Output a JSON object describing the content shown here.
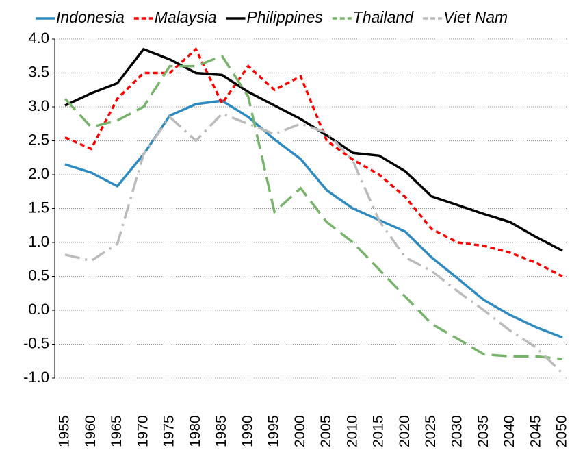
{
  "chart_data": {
    "type": "line",
    "categories": [
      "1955",
      "1960",
      "1965",
      "1970",
      "1975",
      "1980",
      "1985",
      "1990",
      "1995",
      "2000",
      "2005",
      "2010",
      "2015",
      "2020",
      "2025",
      "2030",
      "2035",
      "2040",
      "2045",
      "2050"
    ],
    "series": [
      {
        "name": "Indonesia",
        "color": "#2e8bc0",
        "style": "solid",
        "values": [
          2.15,
          2.03,
          1.83,
          2.3,
          2.87,
          3.04,
          3.09,
          2.85,
          2.52,
          2.23,
          1.77,
          1.5,
          1.33,
          1.16,
          0.78,
          0.47,
          0.15,
          -0.07,
          -0.25,
          -0.4
        ]
      },
      {
        "name": "Malaysia",
        "color": "#ff0000",
        "style": "dashed",
        "values": [
          2.55,
          2.38,
          3.12,
          3.5,
          3.5,
          3.85,
          3.05,
          3.6,
          3.25,
          3.45,
          2.5,
          2.22,
          2.0,
          1.67,
          1.2,
          1.0,
          0.95,
          0.85,
          0.7,
          0.5
        ]
      },
      {
        "name": "Philippines",
        "color": "#000000",
        "style": "solid",
        "values": [
          3.02,
          3.2,
          3.35,
          3.85,
          3.7,
          3.5,
          3.47,
          3.22,
          3.02,
          2.82,
          2.58,
          2.32,
          2.28,
          2.05,
          1.68,
          1.55,
          1.42,
          1.3,
          1.08,
          0.88
        ]
      },
      {
        "name": "Thailand",
        "color": "#77b36a",
        "style": "long-dashed",
        "values": [
          3.12,
          2.7,
          2.8,
          3.0,
          3.6,
          3.6,
          3.75,
          3.15,
          1.45,
          1.8,
          1.3,
          1.0,
          0.6,
          0.2,
          -0.2,
          -0.42,
          -0.65,
          -0.68,
          -0.68,
          -0.72
        ]
      },
      {
        "name": "Viet Nam",
        "color": "#bbbbbb",
        "style": "dash-dot",
        "values": [
          0.82,
          0.73,
          0.98,
          2.3,
          2.85,
          2.5,
          2.9,
          2.75,
          2.6,
          2.75,
          2.62,
          2.2,
          1.32,
          0.78,
          0.58,
          0.28,
          0.0,
          -0.3,
          -0.55,
          -0.93
        ]
      }
    ],
    "ylim": [
      -1,
      4
    ],
    "yticks": [
      {
        "value": -1,
        "label": "-1.0"
      },
      -0.5,
      {
        "value": 0,
        "label": "0.0"
      },
      0.5,
      {
        "value": 1,
        "label": "1.0"
      },
      1.5,
      {
        "value": 2,
        "label": "2.0"
      },
      2.5,
      {
        "value": 3,
        "label": "3.0"
      },
      3.5,
      {
        "value": 4,
        "label": "4.0"
      }
    ],
    "grid": true
  }
}
